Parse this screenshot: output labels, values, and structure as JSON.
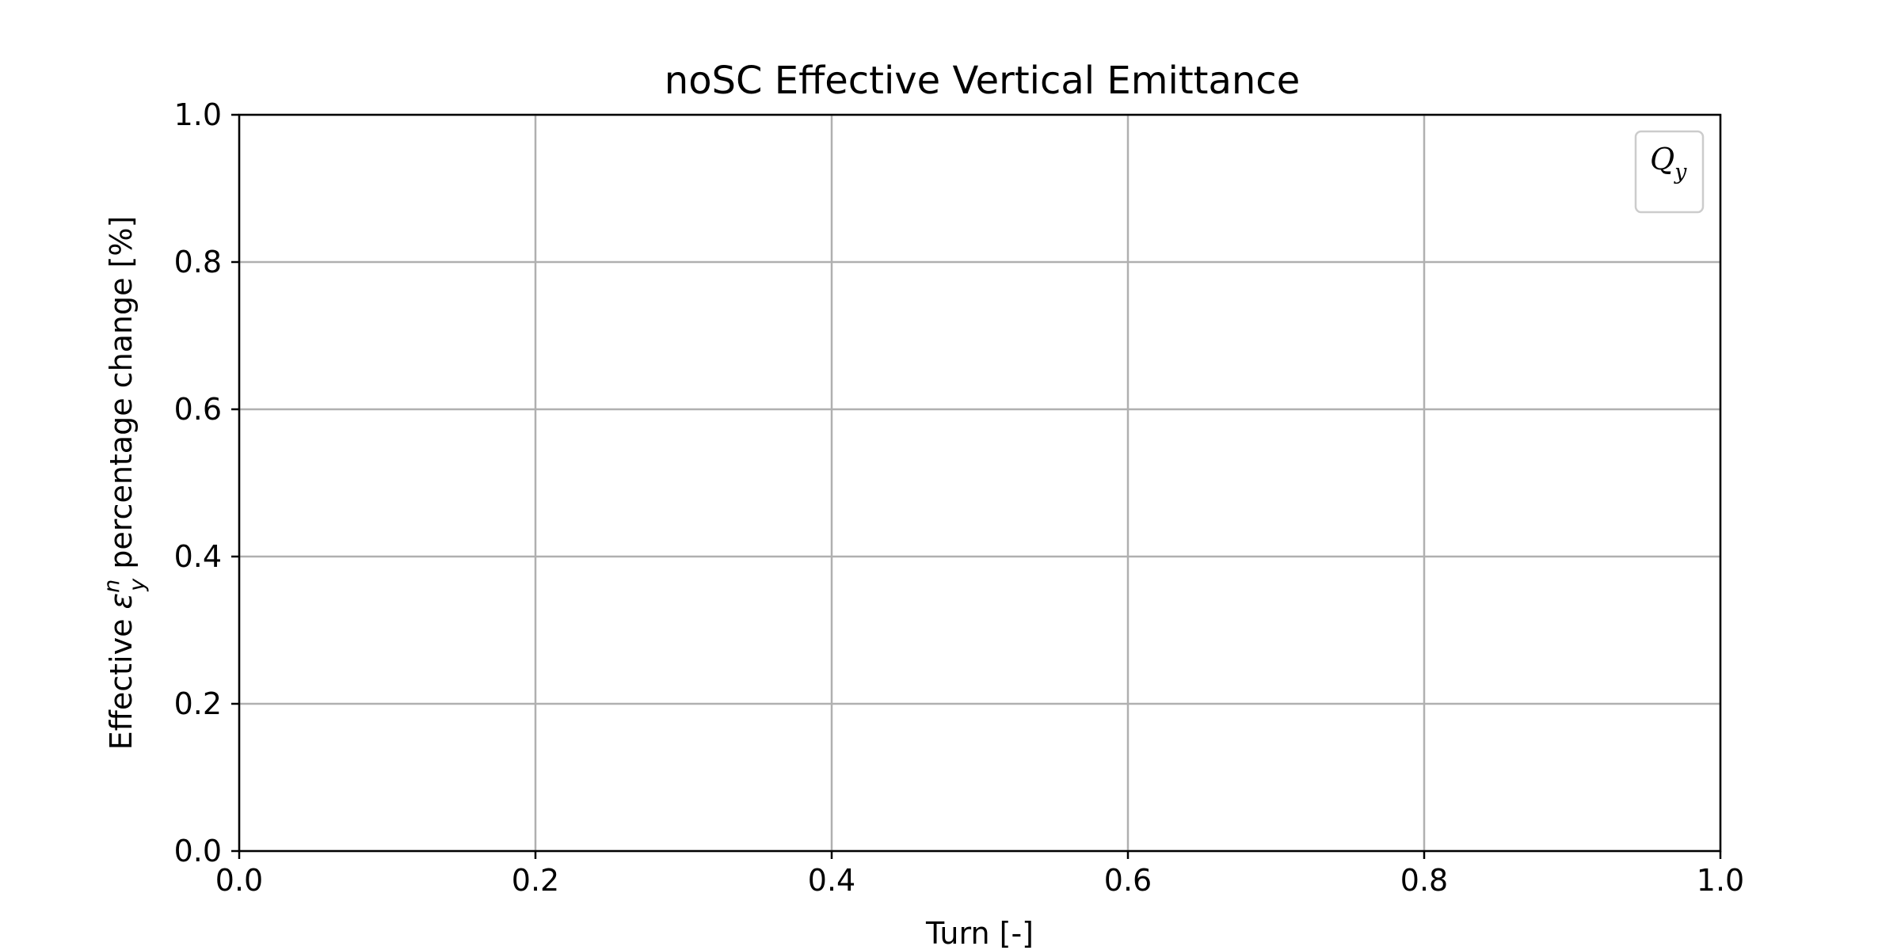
{
  "chart_data": {
    "type": "line",
    "title": "noSC Effective Vertical Emittance",
    "xlabel": "Turn [-]",
    "ylabel": {
      "prefix": "Effective ",
      "symbol": "ε",
      "subscript": "y",
      "superscript": "n",
      "suffix": " percentage change [%]"
    },
    "xlim": [
      0.0,
      1.0
    ],
    "ylim": [
      0.0,
      1.0
    ],
    "xticks": [
      "0.0",
      "0.2",
      "0.4",
      "0.6",
      "0.8",
      "1.0"
    ],
    "yticks": [
      "0.0",
      "0.2",
      "0.4",
      "0.6",
      "0.8",
      "1.0"
    ],
    "grid": true,
    "legend": {
      "placement": "top-right",
      "title": {
        "symbol": "Q",
        "subscript": "y"
      },
      "entries": []
    },
    "series": []
  }
}
